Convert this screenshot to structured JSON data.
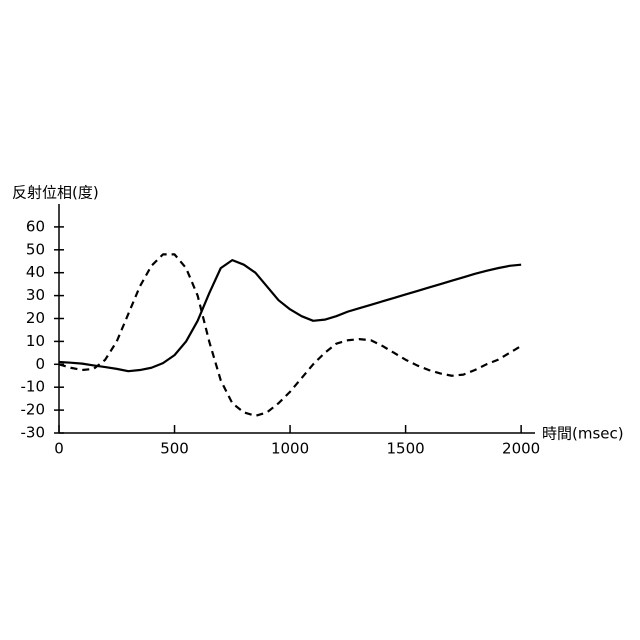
{
  "chart_data": {
    "type": "line",
    "ylabel": "反射位相(度)",
    "xlabel": "時間(msec)",
    "x": [
      0,
      50,
      100,
      150,
      200,
      250,
      300,
      350,
      400,
      450,
      500,
      550,
      600,
      650,
      700,
      750,
      800,
      850,
      900,
      950,
      1000,
      1050,
      1100,
      1150,
      1200,
      1250,
      1300,
      1350,
      1400,
      1450,
      1500,
      1550,
      1600,
      1650,
      1700,
      1750,
      1800,
      1850,
      1900,
      1950,
      2000
    ],
    "series": [
      {
        "color": "#000000",
        "dashed": false,
        "values": [
          1,
          0.7,
          0.3,
          -0.5,
          -1.2,
          -2,
          -3,
          -2.5,
          -1.5,
          0.5,
          4,
          10,
          19,
          31,
          42,
          45.5,
          43.5,
          40,
          34,
          28,
          24,
          21,
          19,
          19.5,
          21,
          23,
          24.5,
          26,
          27.5,
          29,
          30.5,
          32,
          33.5,
          35,
          36.5,
          38,
          39.5,
          40.8,
          42,
          43,
          43.5
        ]
      },
      {
        "color": "#000000",
        "dashed": true,
        "values": [
          0,
          -1.5,
          -2.5,
          -2,
          2,
          10,
          22,
          34,
          43,
          48,
          48,
          42,
          30,
          10,
          -7,
          -17,
          -21,
          -22.5,
          -21,
          -17,
          -12,
          -6,
          0,
          5,
          9,
          10.5,
          11,
          10.5,
          8,
          5,
          2,
          -0.5,
          -2.5,
          -4,
          -5,
          -4.5,
          -2.5,
          0,
          2,
          5,
          8
        ]
      }
    ],
    "xlim": [
      0,
      2060
    ],
    "xticks": [
      0,
      500,
      1000,
      1500,
      2000
    ],
    "ylim": [
      -30,
      70
    ],
    "yticks": [
      -30,
      -20,
      -10,
      0,
      10,
      20,
      30,
      40,
      50,
      60
    ]
  }
}
